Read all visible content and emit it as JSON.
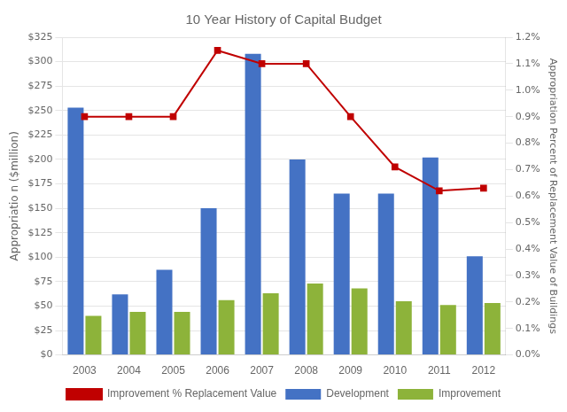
{
  "chart_data": {
    "type": "bar",
    "title": "10 Year History of Capital Budget",
    "categories": [
      "2003",
      "2004",
      "2005",
      "2006",
      "2007",
      "2008",
      "2009",
      "2010",
      "2011",
      "2012"
    ],
    "series": [
      {
        "name": "Development",
        "color": "#4472C4",
        "values": [
          253,
          62,
          87,
          150,
          308,
          200,
          165,
          165,
          202,
          101
        ]
      },
      {
        "name": "Improvement",
        "color": "#8DB33A",
        "values": [
          40,
          44,
          44,
          56,
          63,
          73,
          68,
          55,
          51,
          53
        ]
      },
      {
        "name": "Improvement % Replacement Value",
        "type": "line",
        "axis": "y2",
        "marker": "square",
        "color": "#C00000",
        "values": [
          0.009,
          0.009,
          0.009,
          0.0115,
          0.011,
          0.011,
          0.009,
          0.0071,
          0.0062,
          0.0063
        ]
      }
    ],
    "ylabel": "Appropriatio n ($million)",
    "y2label": "Appropriation Percent of Replacement Value of Buildings",
    "ylim": [
      0,
      325
    ],
    "yticks": [
      {
        "value": 0,
        "label": "$0"
      },
      {
        "value": 25,
        "label": "$25"
      },
      {
        "value": 50,
        "label": "$50"
      },
      {
        "value": 75,
        "label": "$75"
      },
      {
        "value": 100,
        "label": "$100"
      },
      {
        "value": 125,
        "label": "$125"
      },
      {
        "value": 150,
        "label": "$150"
      },
      {
        "value": 175,
        "label": "$175"
      },
      {
        "value": 200,
        "label": "$200"
      },
      {
        "value": 225,
        "label": "$225"
      },
      {
        "value": 250,
        "label": "$250"
      },
      {
        "value": 275,
        "label": "$275"
      },
      {
        "value": 300,
        "label": "$300"
      },
      {
        "value": 325,
        "label": "$325"
      }
    ],
    "y2lim": [
      0.0,
      0.012
    ],
    "y2ticks": [
      {
        "value": 0.0,
        "label": "0.0%"
      },
      {
        "value": 0.001,
        "label": "0.1%"
      },
      {
        "value": 0.002,
        "label": "0.2%"
      },
      {
        "value": 0.003,
        "label": "0.3%"
      },
      {
        "value": 0.004,
        "label": "0.4%"
      },
      {
        "value": 0.005,
        "label": "0.5%"
      },
      {
        "value": 0.006,
        "label": "0.6%"
      },
      {
        "value": 0.007,
        "label": "0.7%"
      },
      {
        "value": 0.008,
        "label": "0.8%"
      },
      {
        "value": 0.009,
        "label": "0.9%"
      },
      {
        "value": 0.01,
        "label": "1.0%"
      },
      {
        "value": 0.011,
        "label": "1.1%"
      },
      {
        "value": 0.012,
        "label": "1.2%"
      }
    ],
    "grid": true,
    "legend": "bottom"
  }
}
